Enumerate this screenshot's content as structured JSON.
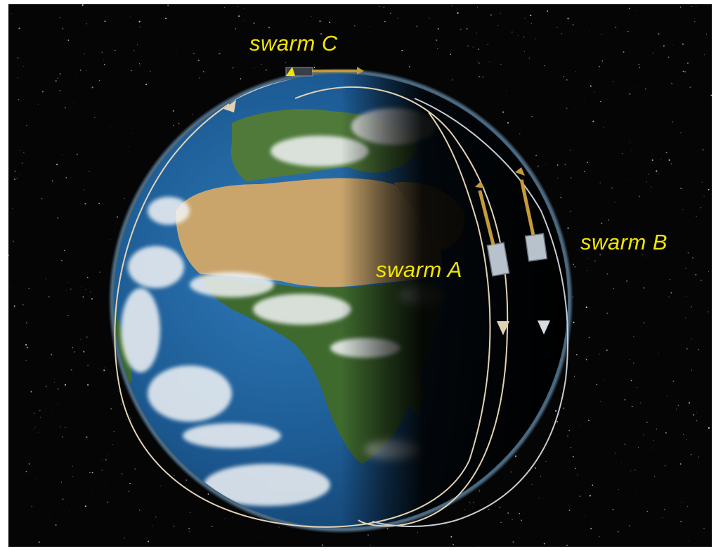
{
  "labels": {
    "swarm_a": "swarm A",
    "swarm_b": "swarm B",
    "swarm_c": "swarm C"
  },
  "colors": {
    "space": "#050506",
    "label": "#f2e600",
    "orbit": "#e2d2b4",
    "orbit_b": "#c6ccd2",
    "ocean": "#1f5f9a",
    "land_desert": "#c9a56c",
    "land_forest": "#3f6a2e",
    "cloud": "#f2f4f6",
    "satellite_gold": "#c49a3a",
    "satellite_panel": "#b8c2cc"
  }
}
